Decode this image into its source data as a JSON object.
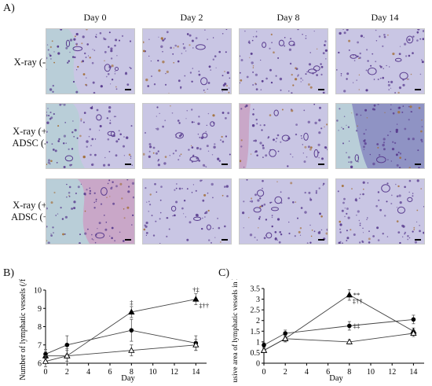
{
  "figure": {
    "panel_a_label": "A)",
    "panel_b_label": "B)",
    "panel_c_label": "C)",
    "columns": [
      "Day 0",
      "Day 2",
      "Day 8",
      "Day 14"
    ],
    "rows": [
      {
        "line1": "X-ray (-)",
        "line2": ""
      },
      {
        "line1": "X-ray (+)",
        "line2": "ADSC (-)"
      },
      {
        "line1": "X-ray (+)",
        "line2": "ADSC (+)"
      }
    ]
  },
  "tissue_colors": {
    "background": "#b9ced8",
    "tissue": "#c9c6e4",
    "nuclei": "#5a3d8f",
    "brown": "#a3703b",
    "pink": "#c9a7c8"
  },
  "chart_data": [
    {
      "type": "line",
      "panel": "B)",
      "xlabel": "Day",
      "ylabel": "Number of lymphatic vessels (/field)",
      "xlim": [
        0,
        15
      ],
      "ylim": [
        6,
        10
      ],
      "x_ticks": [
        "0",
        "2",
        "4",
        "6",
        "8",
        "10",
        "12",
        "14"
      ],
      "y_ticks": [
        "6",
        "7",
        "8",
        "9",
        "10"
      ],
      "x": [
        0,
        2,
        8,
        14
      ],
      "series": [
        {
          "marker": "filled-triangle",
          "values": [
            6.4,
            6.4,
            8.8,
            9.5
          ],
          "errors": [
            0.25,
            0.3,
            0.3,
            0.3
          ]
        },
        {
          "marker": "filled-circle",
          "values": [
            6.5,
            7.0,
            7.8,
            7.1
          ],
          "errors": [
            0.25,
            0.5,
            0.6,
            0.4
          ]
        },
        {
          "marker": "open-triangle",
          "values": [
            6.1,
            6.4,
            6.7,
            7.0
          ],
          "errors": [
            0.3,
            0.4,
            0.3,
            0.3
          ]
        }
      ],
      "annotations": [
        {
          "x": 8,
          "series": 0,
          "text": "‡",
          "pos": "above"
        },
        {
          "x": 14,
          "series": 0,
          "text": "†‡",
          "pos": "above"
        },
        {
          "x": 14,
          "series": 0,
          "text": "‡††",
          "pos": "below"
        }
      ]
    },
    {
      "type": "line",
      "panel": "C)",
      "xlabel": "Day",
      "ylabel": "Exclusive area of lymphatic vessels in HPF (%)",
      "xlim": [
        0,
        15
      ],
      "ylim": [
        0,
        3.5
      ],
      "x_ticks": [
        "0",
        "2",
        "4",
        "6",
        "8",
        "10",
        "12",
        "14"
      ],
      "y_ticks": [
        "0",
        "0.5",
        "1",
        "1.5",
        "2",
        "2.5",
        "3",
        "3.5"
      ],
      "x": [
        0,
        2,
        8,
        14
      ],
      "series": [
        {
          "marker": "filled-triangle",
          "values": [
            0.6,
            1.15,
            3.2,
            1.5
          ],
          "errors": [
            0.1,
            0.15,
            0.25,
            0.15
          ]
        },
        {
          "marker": "filled-circle",
          "values": [
            0.85,
            1.4,
            1.75,
            2.05
          ],
          "errors": [
            0.1,
            0.15,
            0.2,
            0.2
          ]
        },
        {
          "marker": "open-triangle",
          "values": [
            0.6,
            1.15,
            1.0,
            1.4
          ],
          "errors": [
            0.1,
            0.15,
            0.1,
            0.15
          ]
        }
      ],
      "annotations": [
        {
          "x": 8,
          "series": 0,
          "text": "**",
          "pos": "right"
        },
        {
          "x": 8,
          "series": 0,
          "text": "‡††",
          "pos": "below"
        },
        {
          "x": 8,
          "series": 1,
          "text": "‡‡",
          "pos": "right"
        }
      ]
    }
  ]
}
